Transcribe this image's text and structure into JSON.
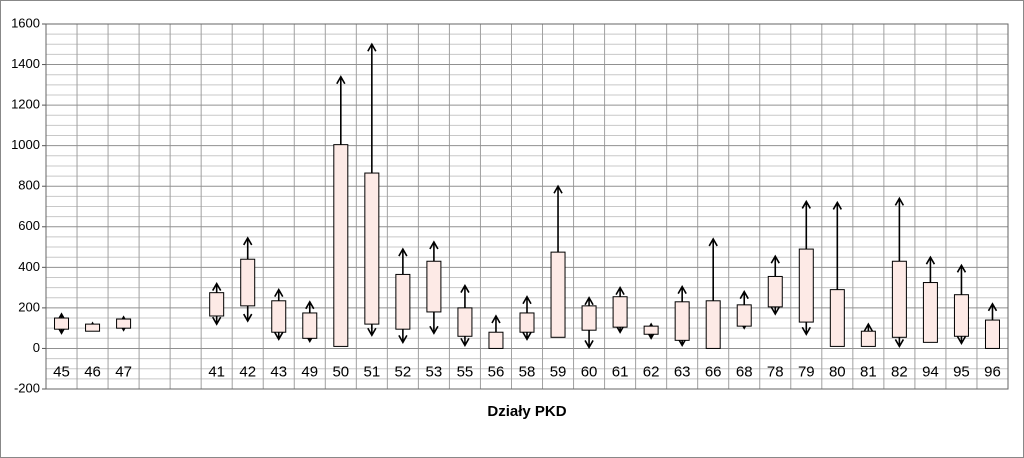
{
  "chart_data": {
    "type": "floating-box",
    "x_label": "Działy PKD",
    "categories": [
      "45",
      "46",
      "47",
      null,
      null,
      "41",
      "42",
      "43",
      "49",
      "50",
      "51",
      "52",
      "53",
      "55",
      "56",
      "58",
      "59",
      "60",
      "61",
      "62",
      "63",
      "66",
      "68",
      "78",
      "79",
      "80",
      "81",
      "82",
      "94",
      "95",
      "96"
    ],
    "box_low": [
      95,
      85,
      100,
      null,
      null,
      160,
      210,
      80,
      50,
      10,
      120,
      95,
      180,
      60,
      0,
      80,
      55,
      90,
      105,
      70,
      40,
      0,
      110,
      205,
      130,
      10,
      10,
      55,
      30,
      60,
      0
    ],
    "box_high": [
      150,
      120,
      145,
      null,
      null,
      275,
      440,
      235,
      175,
      1005,
      865,
      365,
      430,
      200,
      80,
      175,
      475,
      210,
      255,
      110,
      230,
      235,
      215,
      355,
      490,
      290,
      85,
      430,
      325,
      265,
      140
    ],
    "arrow_low": [
      75,
      85,
      90,
      null,
      null,
      120,
      135,
      45,
      35,
      10,
      65,
      30,
      75,
      15,
      0,
      45,
      55,
      5,
      80,
      50,
      15,
      0,
      100,
      170,
      70,
      10,
      10,
      10,
      30,
      25,
      0
    ],
    "arrow_high": [
      170,
      125,
      155,
      null,
      null,
      320,
      545,
      290,
      230,
      1340,
      1500,
      490,
      525,
      310,
      160,
      255,
      800,
      250,
      300,
      120,
      305,
      540,
      280,
      455,
      725,
      720,
      120,
      740,
      450,
      410,
      220
    ],
    "color": "#fdeae6",
    "ylim": [
      -200,
      1600
    ],
    "yticks": [
      -200,
      0,
      200,
      400,
      600,
      800,
      1000,
      1200,
      1400,
      1600
    ],
    "yminorticks": [
      -150,
      -100,
      -50,
      50,
      100,
      150,
      250,
      300,
      350,
      450,
      500,
      550,
      650,
      700,
      750,
      850,
      900,
      950,
      1050,
      1100,
      1150,
      1250,
      1300,
      1350,
      1450,
      1500,
      1550
    ],
    "grid": true
  }
}
